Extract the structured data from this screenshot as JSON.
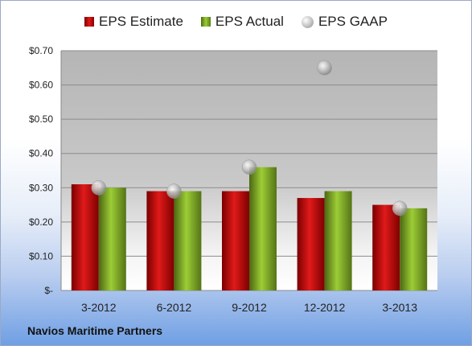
{
  "chart_data": {
    "type": "bar",
    "categories": [
      "3-2012",
      "6-2012",
      "9-2012",
      "12-2012",
      "3-2013"
    ],
    "series": [
      {
        "name": "EPS Estimate",
        "values": [
          0.31,
          0.29,
          0.29,
          0.27,
          0.25
        ],
        "color": "#c81414"
      },
      {
        "name": "EPS Actual",
        "values": [
          0.3,
          0.29,
          0.36,
          0.29,
          0.24
        ],
        "color": "#8ab82e"
      },
      {
        "name": "EPS GAAP",
        "type": "scatter",
        "values": [
          0.3,
          0.29,
          0.36,
          0.65,
          0.24
        ],
        "color": "#a8a8a8"
      }
    ],
    "ylim": [
      0,
      0.7
    ],
    "yticks": [
      0,
      0.1,
      0.2,
      0.3,
      0.4,
      0.5,
      0.6,
      0.7
    ],
    "ytick_labels": [
      "$-",
      "$0.10",
      "$0.20",
      "$0.30",
      "$0.40",
      "$0.50",
      "$0.60",
      "$0.70"
    ],
    "grid": true,
    "legend_position": "top"
  },
  "legend": {
    "estimate": "EPS Estimate",
    "actual": "EPS Actual",
    "gaap": "EPS GAAP"
  },
  "company": "Navios Maritime Partners"
}
